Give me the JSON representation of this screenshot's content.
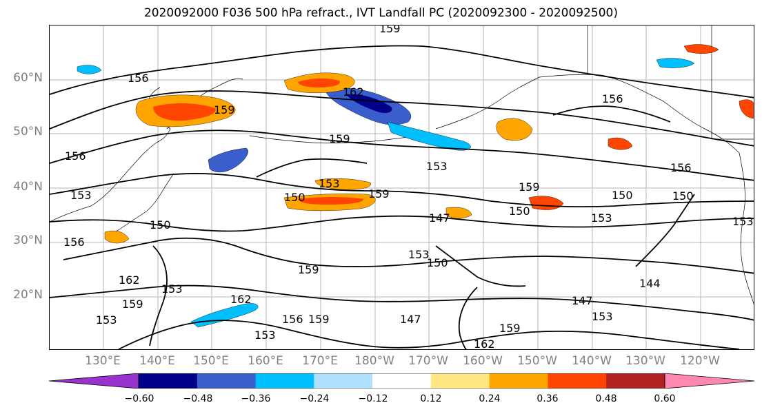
{
  "title": "2020092000 F036 500 hPa refract., IVT Landfall PC (2020092300 - 2020092500)",
  "lat_labels": [
    "60°N",
    "50°N",
    "40°N",
    "30°N",
    "20°N"
  ],
  "lon_labels": [
    "130°E",
    "140°E",
    "150°E",
    "160°E",
    "170°E",
    "180°W",
    "170°W",
    "160°W",
    "150°W",
    "140°W",
    "130°W",
    "120°W"
  ],
  "contour_labels": [
    "159",
    "156",
    "162",
    "159",
    "156",
    "159",
    "153",
    "156",
    "150",
    "153",
    "159",
    "150",
    "156",
    "150",
    "153",
    "159",
    "150",
    "147",
    "153",
    "150",
    "153",
    "150",
    "144",
    "159",
    "162",
    "153",
    "162",
    "159",
    "156",
    "153",
    "147",
    "153",
    "147",
    "159",
    "156",
    "159",
    "153",
    "162",
    "153"
  ],
  "colorbar": {
    "colors": [
      "#9a32cd",
      "#00008b",
      "#3a5fcd",
      "#00bfff",
      "#b0e2ff",
      "#ffffff",
      "#ffe680",
      "#ffa500",
      "#ff4500",
      "#b22222",
      "#ff88b0"
    ],
    "ticks": [
      "−0.60",
      "−0.48",
      "−0.36",
      "−0.24",
      "−0.12",
      "0.12",
      "0.24",
      "0.36",
      "0.48",
      "0.60"
    ]
  }
}
